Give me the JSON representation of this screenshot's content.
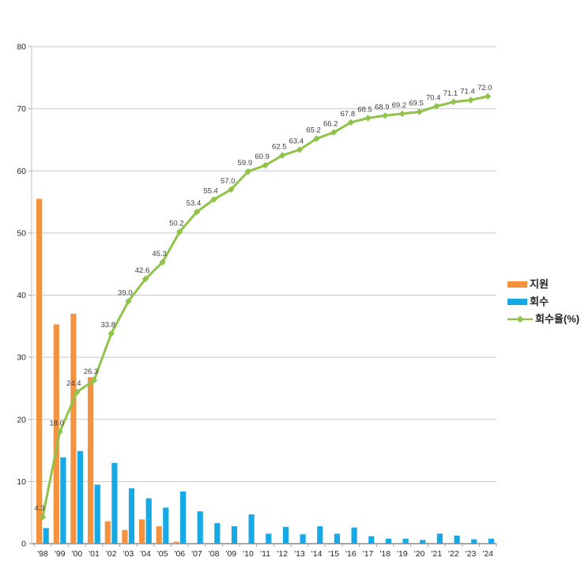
{
  "chart_data": {
    "type": "combo",
    "title": "",
    "xlabel": "",
    "ylabel": "",
    "categories": [
      "'98",
      "'99",
      "'00",
      "'01",
      "'02",
      "'03",
      "'04",
      "'05",
      "'06",
      "'07",
      "'08",
      "'09",
      "'10",
      "'11",
      "'12",
      "'13",
      "'14",
      "'15",
      "'16",
      "'17",
      "'18",
      "'19",
      "'20",
      "'21",
      "'22",
      "'23",
      "'24"
    ],
    "series": [
      {
        "name": "지원",
        "type": "bar",
        "color": "#F59240",
        "values": [
          55.5,
          35.3,
          37.0,
          26.8,
          3.6,
          2.2,
          3.9,
          2.8,
          0.3,
          0,
          0,
          0,
          0,
          0,
          0,
          0,
          0,
          0,
          0,
          0,
          0,
          0,
          0,
          0,
          0,
          0,
          0
        ]
      },
      {
        "name": "회수",
        "type": "bar",
        "color": "#17A8E6",
        "values": [
          2.5,
          13.9,
          14.9,
          9.5,
          13.0,
          8.9,
          7.3,
          5.8,
          8.4,
          5.2,
          3.3,
          2.8,
          4.7,
          1.6,
          2.7,
          1.5,
          2.8,
          1.6,
          2.6,
          1.2,
          0.8,
          0.8,
          0.6,
          1.6,
          1.3,
          0.7,
          0.8
        ]
      },
      {
        "name": "회수율(%)",
        "type": "line",
        "color": "#8FC349",
        "marker": "diamond",
        "labels_visible": true,
        "values": [
          4.3,
          18.0,
          24.4,
          26.3,
          33.8,
          39.0,
          42.6,
          45.3,
          50.2,
          53.4,
          55.4,
          57.0,
          59.9,
          60.9,
          62.5,
          63.4,
          65.2,
          66.2,
          67.8,
          68.5,
          68.9,
          69.2,
          69.5,
          70.4,
          71.1,
          71.4,
          72.0
        ]
      }
    ],
    "ylim": [
      0,
      80
    ],
    "yticks": [
      0,
      10,
      20,
      30,
      40,
      50,
      60,
      70,
      80
    ],
    "grid": true,
    "legend_position": "right",
    "grid_color": "#C9C9C9",
    "axis_color": "#A6A6A6",
    "label_color": "#3C3C3C"
  },
  "legend": {
    "items": [
      {
        "label": "지원"
      },
      {
        "label": "회수"
      },
      {
        "label": "회수율(%)"
      }
    ]
  }
}
